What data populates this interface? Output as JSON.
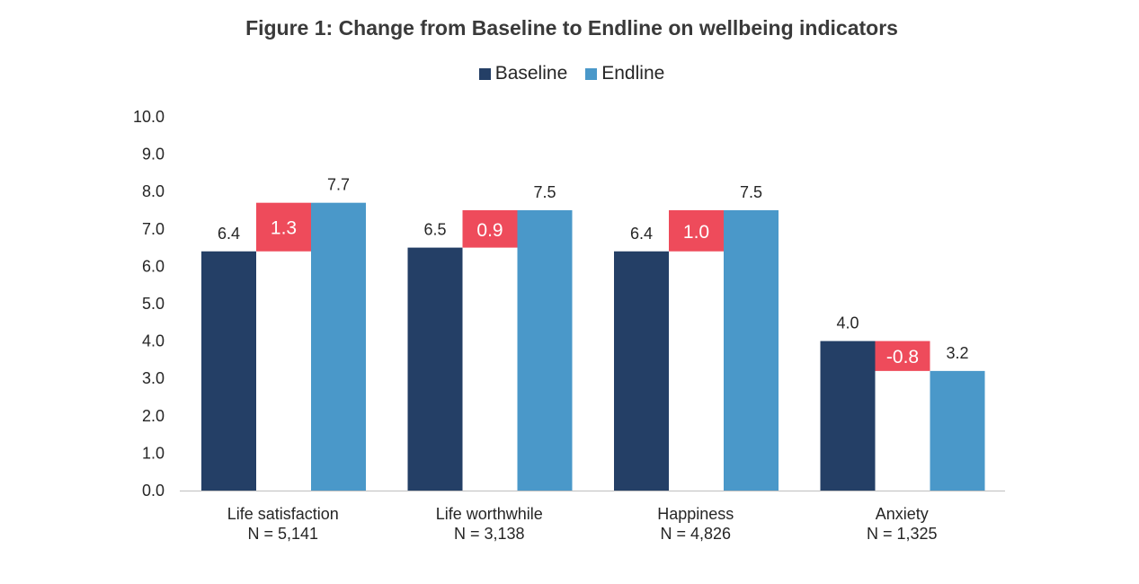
{
  "chart_data": {
    "type": "bar",
    "title": "Figure 1: Change from Baseline to Endline on wellbeing indicators",
    "categories": [
      "Life satisfaction",
      "Life worthwhile",
      "Happiness",
      "Anxiety"
    ],
    "category_sublabels": [
      "N = 5,141",
      "N = 3,138",
      "N = 4,826",
      "N = 1,325"
    ],
    "series": [
      {
        "name": "Baseline",
        "color": "#243f66",
        "values": [
          6.4,
          6.5,
          6.4,
          4.0
        ],
        "labels": [
          "6.4",
          "6.5",
          "6.4",
          "4.0"
        ]
      },
      {
        "name": "Endline",
        "color": "#4a98c9",
        "values": [
          7.7,
          7.5,
          7.5,
          3.2
        ],
        "labels": [
          "7.7",
          "7.5",
          "7.5",
          "3.2"
        ]
      }
    ],
    "change": {
      "color": "#ee4b5b",
      "values": [
        1.3,
        0.9,
        1.0,
        -0.8
      ],
      "labels": [
        "1.3",
        "0.9",
        "1.0",
        "-0.8"
      ]
    },
    "ylim": [
      0,
      10
    ],
    "yticks": [
      "0.0",
      "1.0",
      "2.0",
      "3.0",
      "4.0",
      "5.0",
      "6.0",
      "7.0",
      "8.0",
      "9.0",
      "10.0"
    ],
    "xlabel": "",
    "ylabel": "",
    "legend": "top-center",
    "grid": false
  }
}
